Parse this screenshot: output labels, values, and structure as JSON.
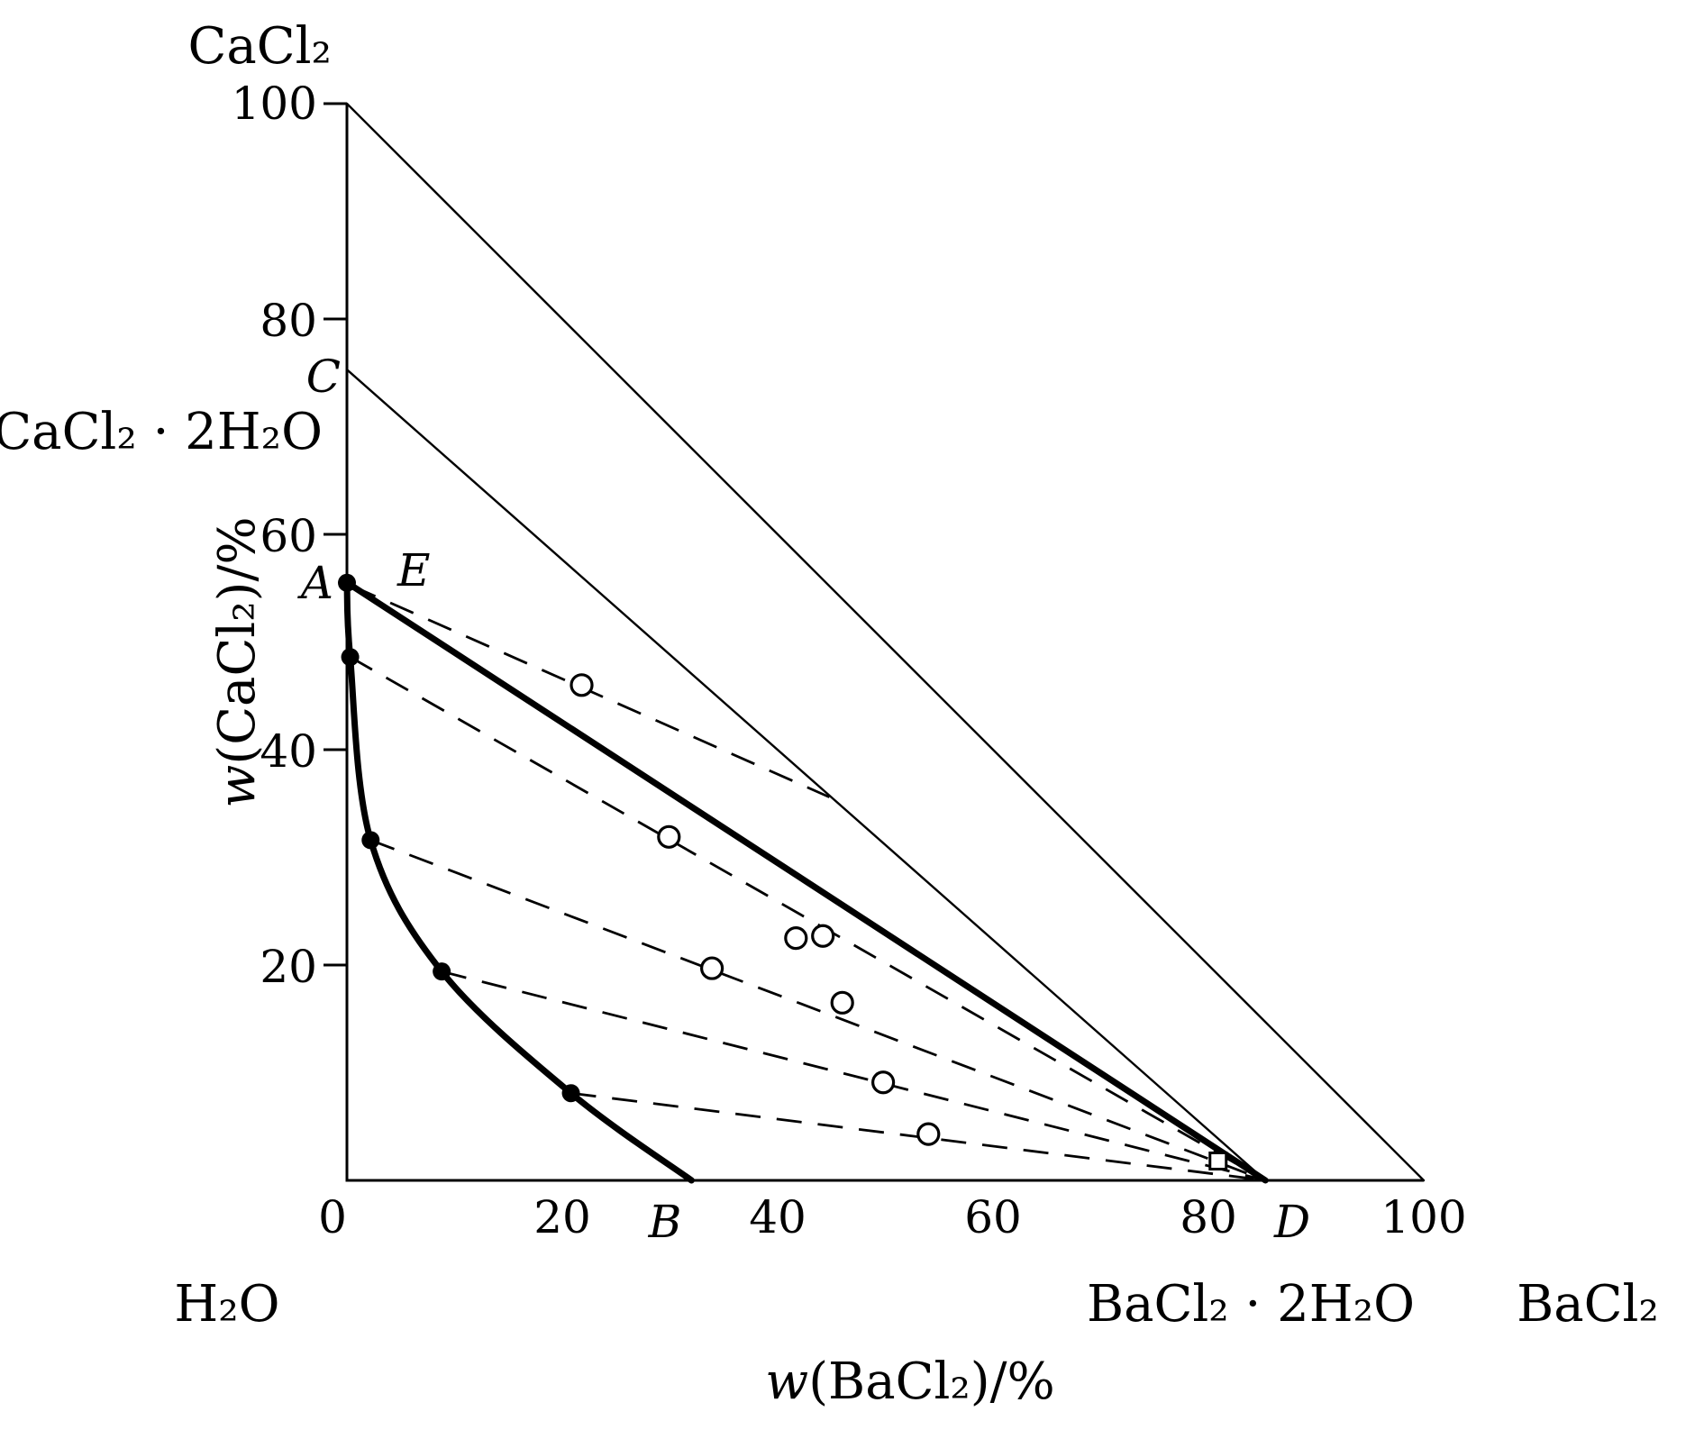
{
  "figure": {
    "background": "#ffffff",
    "ink": "#000000"
  },
  "chart_data": {
    "type": "line",
    "title": "",
    "xlabel": {
      "italic": "w",
      "normal": "(BaCl₂)/%"
    },
    "ylabel": {
      "italic": "w",
      "normal": "(CaCl₂)/%"
    },
    "xlim": [
      0,
      100
    ],
    "ylim": [
      0,
      100
    ],
    "x_ticks": [
      0,
      20,
      40,
      60,
      80,
      100
    ],
    "y_ticks": [
      20,
      40,
      60,
      80,
      100
    ],
    "vertex_labels": {
      "top": "CaCl₂",
      "origin": "H₂O",
      "right": "BaCl₂"
    },
    "compound_labels": {
      "left": "CaCl₂ · 2H₂O",
      "bottom": "BaCl₂ · 2H₂O"
    },
    "point_letters": {
      "A": "A",
      "B": "B",
      "C": "C",
      "D": "D",
      "E": "E"
    },
    "series": [
      {
        "name": "triangle-hypotenuse",
        "style": "thin",
        "points": [
          [
            0,
            100
          ],
          [
            100,
            0
          ]
        ]
      },
      {
        "name": "hydrate-join-CD",
        "style": "thin",
        "points": [
          [
            0,
            75.3
          ],
          [
            85.3,
            0
          ]
        ]
      },
      {
        "name": "saturation-line-ED",
        "style": "thick",
        "points": [
          [
            0.5,
            55.2
          ],
          [
            85.3,
            0
          ]
        ]
      },
      {
        "name": "solubility-curve-AB",
        "style": "thick-smooth",
        "points": [
          [
            0,
            55.5
          ],
          [
            0.3,
            48.6
          ],
          [
            2.2,
            31.6
          ],
          [
            8.8,
            19.4
          ],
          [
            20.8,
            8.1
          ],
          [
            32,
            0
          ]
        ]
      },
      {
        "name": "tie-line-1",
        "style": "dashed",
        "points": [
          [
            0.5,
            55.2
          ],
          [
            44.8,
            35.6
          ]
        ]
      },
      {
        "name": "tie-line-2",
        "style": "dashed",
        "points": [
          [
            0.3,
            48.6
          ],
          [
            85.3,
            0
          ]
        ]
      },
      {
        "name": "tie-line-3",
        "style": "dashed",
        "points": [
          [
            2.2,
            31.6
          ],
          [
            85.3,
            0
          ]
        ]
      },
      {
        "name": "tie-line-4",
        "style": "dashed",
        "points": [
          [
            8.8,
            19.4
          ],
          [
            85.3,
            0
          ]
        ]
      },
      {
        "name": "tie-line-5",
        "style": "dashed",
        "points": [
          [
            20.8,
            8.1
          ],
          [
            85.3,
            0
          ]
        ]
      }
    ],
    "markers": {
      "filled_circles": [
        [
          0,
          55.5
        ],
        [
          0.3,
          48.6
        ],
        [
          2.2,
          31.6
        ],
        [
          8.8,
          19.4
        ],
        [
          20.8,
          8.1
        ]
      ],
      "open_circles": [
        [
          21.8,
          46.0
        ],
        [
          29.9,
          31.9
        ],
        [
          41.7,
          22.5
        ],
        [
          44.2,
          22.7
        ],
        [
          33.9,
          19.7
        ],
        [
          46.0,
          16.5
        ],
        [
          49.8,
          9.1
        ],
        [
          54.0,
          4.3
        ]
      ],
      "open_square": [
        80.9,
        1.8
      ]
    }
  }
}
